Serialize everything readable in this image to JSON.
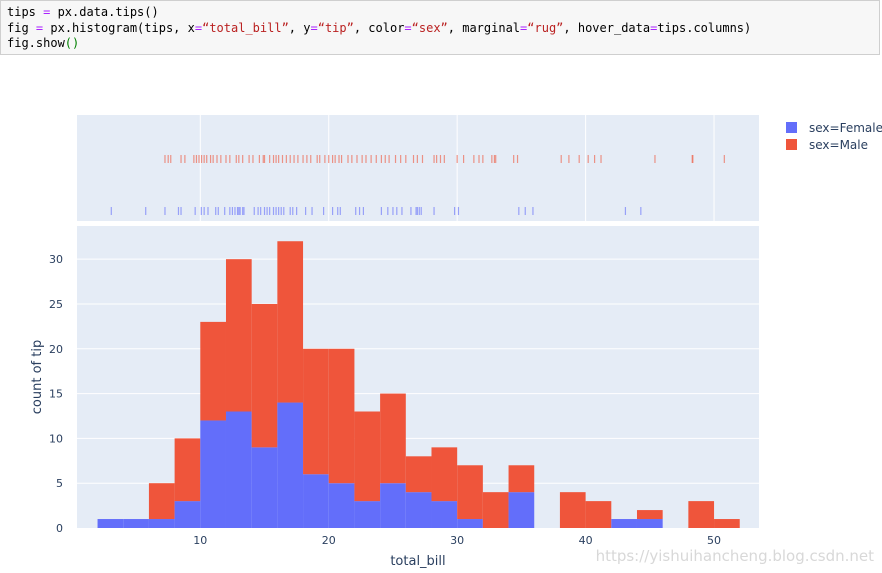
{
  "code_cell": {
    "line1": {
      "a": "tips ",
      "op": "=",
      "b": " px.data.tips()"
    },
    "line2": {
      "a": "fig ",
      "op1": "=",
      "b": " px.histogram(tips, x",
      "op2": "=",
      "s1": "“total_bill”",
      "c": ", y",
      "op3": "=",
      "s2": "“tip”",
      "d": ", color",
      "op4": "=",
      "s3": "“sex”",
      "e": ", marginal",
      "op5": "=",
      "s4": "“rug”",
      "f": ", hover_data",
      "op6": "=",
      "g": "tips.columns)"
    },
    "line3": {
      "a": "fig.show",
      "p": "()"
    }
  },
  "chart_data": {
    "type": "bar",
    "barmode": "stack",
    "marginal": "rug",
    "xlabel": "total_bill",
    "ylabel": "count of tip",
    "xlim": [
      0.4,
      53.5
    ],
    "ylim": [
      0,
      33.7
    ],
    "xticks": [
      10,
      20,
      30,
      40,
      50
    ],
    "yticks": [
      0,
      5,
      10,
      15,
      20,
      25,
      30
    ],
    "grid": true,
    "legend_placement": "top-right",
    "bin_width": 2,
    "bin_starts": [
      2,
      4,
      6,
      8,
      10,
      12,
      14,
      16,
      18,
      20,
      22,
      24,
      26,
      28,
      30,
      32,
      34,
      36,
      38,
      40,
      42,
      44,
      46,
      48,
      50
    ],
    "series": [
      {
        "name": "sex=Female",
        "color": "#636efa",
        "values": [
          1,
          1,
          1,
          3,
          12,
          13,
          9,
          14,
          6,
          5,
          3,
          5,
          4,
          3,
          1,
          0,
          4,
          0,
          0,
          0,
          1,
          1,
          0,
          0,
          0
        ],
        "rug": [
          3.07,
          5.75,
          7.25,
          8.3,
          8.5,
          9.6,
          10.08,
          10.3,
          10.6,
          11.2,
          11.4,
          11.9,
          12.3,
          12.5,
          12.7,
          12.9,
          13.0,
          13.1,
          13.3,
          13.4,
          14.2,
          14.5,
          14.7,
          15.0,
          15.2,
          15.4,
          15.7,
          15.9,
          16.1,
          16.3,
          16.5,
          17.0,
          17.2,
          17.5,
          18.2,
          18.7,
          19.6,
          20.3,
          20.7,
          20.9,
          22.1,
          22.4,
          22.7,
          24.1,
          24.6,
          25.0,
          25.3,
          25.7,
          26.4,
          26.8,
          26.9,
          27.05,
          27.2,
          28.2,
          29.8,
          30.1,
          34.8,
          35.3,
          35.9,
          43.1,
          44.3
        ]
      },
      {
        "name": "sex=Male",
        "color": "#ef553b",
        "values": [
          0,
          0,
          4,
          7,
          11,
          17,
          16,
          18,
          14,
          15,
          10,
          10,
          4,
          6,
          6,
          4,
          3,
          0,
          4,
          3,
          0,
          1,
          0,
          3,
          1
        ],
        "rug": [
          7.25,
          7.5,
          7.7,
          8.5,
          8.8,
          9.5,
          9.7,
          9.9,
          10.1,
          10.3,
          10.5,
          10.8,
          11.0,
          11.3,
          11.6,
          12.0,
          12.3,
          12.8,
          13.0,
          13.3,
          13.8,
          14.1,
          14.6,
          14.9,
          15.0,
          15.4,
          15.7,
          15.9,
          16.1,
          16.4,
          16.7,
          17.0,
          17.3,
          17.6,
          18.0,
          18.3,
          18.6,
          19.1,
          19.3,
          19.7,
          20.0,
          20.3,
          20.5,
          20.8,
          21.0,
          21.5,
          21.8,
          22.2,
          22.6,
          22.9,
          23.3,
          23.7,
          24.1,
          24.4,
          24.7,
          25.2,
          25.6,
          26.0,
          26.6,
          26.9,
          27.3,
          28.2,
          28.4,
          28.7,
          29.0,
          30.0,
          30.5,
          31.3,
          31.7,
          32.0,
          32.7,
          32.9,
          33.0,
          34.4,
          34.7,
          38.1,
          38.7,
          39.5,
          40.2,
          40.7,
          41.2,
          45.4,
          48.3,
          48.35,
          50.8
        ]
      }
    ]
  },
  "watermark": "https://yishuihancheng.blog.csdn.net"
}
